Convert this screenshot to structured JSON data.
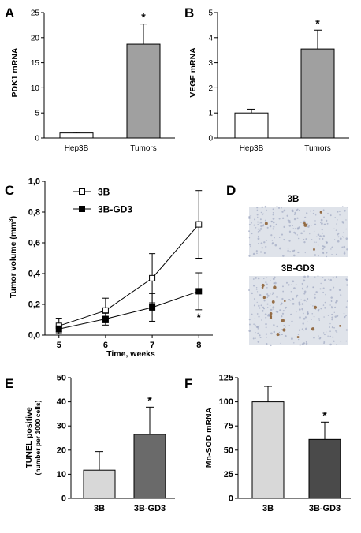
{
  "panels": {
    "A": "A",
    "B": "B",
    "C": "C",
    "D": "D",
    "E": "E",
    "F": "F"
  },
  "colors": {
    "white_bar": "#ffffff",
    "mid_gray": "#a0a0a0",
    "light_gray": "#d8d8d8",
    "dark_gray_E": "#6a6a6a",
    "dark_gray_F": "#4a4a4a",
    "stain_bg": "#dfe3ea",
    "stain_brown": "#8a5a2b"
  },
  "images": {
    "top_title": "3B",
    "bottom_title": "3B-GD3"
  },
  "chart_data": [
    {
      "panel": "A",
      "type": "bar",
      "categories": [
        "Hep3B",
        "Tumors"
      ],
      "values": [
        1.0,
        18.7
      ],
      "errors": [
        0.15,
        4.0
      ],
      "significance": [
        "",
        "*"
      ],
      "ylabel": "PDK1 mRNA",
      "ylim": [
        0,
        25
      ],
      "yticks": [
        0,
        5,
        10,
        15,
        20,
        25
      ],
      "grid": false
    },
    {
      "panel": "B",
      "type": "bar",
      "categories": [
        "Hep3B",
        "Tumors"
      ],
      "values": [
        1.0,
        3.55
      ],
      "errors": [
        0.15,
        0.75
      ],
      "significance": [
        "",
        "*"
      ],
      "ylabel": "VEGF mRNA",
      "ylim": [
        0,
        5
      ],
      "yticks": [
        0,
        1,
        2,
        3,
        4,
        5
      ],
      "grid": false
    },
    {
      "panel": "C",
      "type": "line",
      "x": [
        5,
        6,
        7,
        8
      ],
      "series": [
        {
          "name": "3B",
          "marker": "open-square",
          "values": [
            0.06,
            0.16,
            0.37,
            0.72
          ],
          "errors": [
            0.05,
            0.08,
            0.16,
            0.22
          ]
        },
        {
          "name": "3B-GD3",
          "marker": "filled-square",
          "values": [
            0.04,
            0.105,
            0.18,
            0.285
          ],
          "errors": [
            0.02,
            0.04,
            0.09,
            0.12
          ]
        }
      ],
      "annotation": "*",
      "xlabel": "Time, weeks",
      "ylabel_main": "Tumor volume (mm",
      "ylabel_sup": "3",
      "ylabel_end": ")",
      "xlim": [
        4.7,
        8.3
      ],
      "ylim": [
        0,
        1.0
      ],
      "yticks": [
        "0,0",
        "0,2",
        "0,4",
        "0,6",
        "0,8",
        "1,0"
      ],
      "legend_position": "top-left",
      "grid": false
    },
    {
      "panel": "E",
      "type": "bar",
      "categories": [
        "3B",
        "3B-GD3"
      ],
      "values": [
        11.7,
        26.5
      ],
      "errors": [
        7.7,
        11.3
      ],
      "significance": [
        "",
        "*"
      ],
      "ylabel": "TUNEL positive",
      "ylabel2": "(number per 1000 cells)",
      "ylim": [
        0,
        50
      ],
      "yticks": [
        0,
        10,
        20,
        30,
        40,
        50
      ],
      "grid": false
    },
    {
      "panel": "F",
      "type": "bar",
      "categories": [
        "3B",
        "3B-GD3"
      ],
      "values": [
        100,
        61
      ],
      "errors": [
        16,
        18
      ],
      "significance": [
        "",
        "*"
      ],
      "ylabel": "Mn-SOD mRNA",
      "ylim": [
        0,
        125
      ],
      "yticks": [
        0,
        25,
        50,
        75,
        100,
        125
      ],
      "grid": false
    }
  ]
}
